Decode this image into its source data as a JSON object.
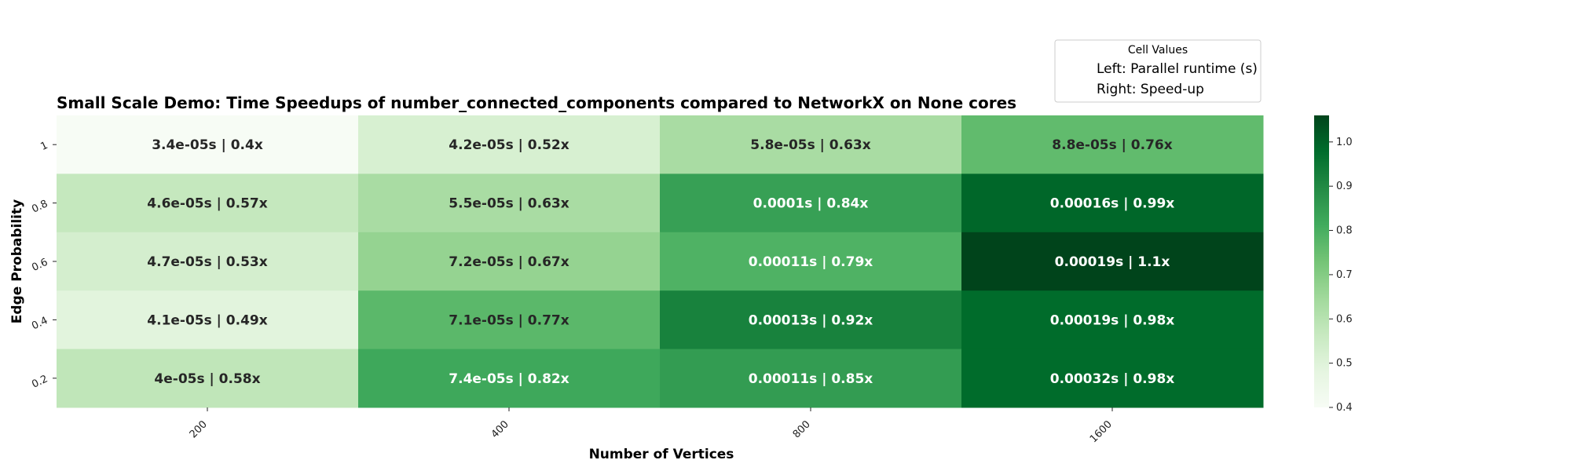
{
  "chart_data": {
    "type": "heatmap",
    "title": "Small Scale Demo: Time Speedups of number_connected_components compared to NetworkX on None cores",
    "xlabel": "Number of Vertices",
    "ylabel": "Edge Probability",
    "x_categories": [
      "200",
      "400",
      "800",
      "1600"
    ],
    "y_categories": [
      "1",
      "0.8",
      "0.6",
      "0.4",
      "0.2"
    ],
    "values": [
      [
        0.4,
        0.52,
        0.63,
        0.76
      ],
      [
        0.57,
        0.63,
        0.84,
        0.99
      ],
      [
        0.53,
        0.67,
        0.79,
        1.06
      ],
      [
        0.49,
        0.77,
        0.92,
        0.98
      ],
      [
        0.58,
        0.82,
        0.85,
        0.98
      ]
    ],
    "cell_labels": [
      [
        "3.4e-05s | 0.4x",
        "4.2e-05s | 0.52x",
        "5.8e-05s | 0.63x",
        "8.8e-05s | 0.76x"
      ],
      [
        "4.6e-05s | 0.57x",
        "5.5e-05s | 0.63x",
        "0.0001s | 0.84x",
        "0.00016s | 0.99x"
      ],
      [
        "4.7e-05s | 0.53x",
        "7.2e-05s | 0.67x",
        "0.00011s | 0.79x",
        "0.00019s | 1.1x"
      ],
      [
        "4.1e-05s | 0.49x",
        "7.1e-05s | 0.77x",
        "0.00013s | 0.92x",
        "0.00019s | 0.98x"
      ],
      [
        "4e-05s | 0.58x",
        "7.4e-05s | 0.82x",
        "0.00011s | 0.85x",
        "0.00032s | 0.98x"
      ]
    ],
    "colorbar": {
      "colormap": "Greens",
      "vmin": 0.4,
      "vmax": 1.06,
      "ticks": [
        "0.4",
        "0.5",
        "0.6",
        "0.7",
        "0.8",
        "0.9",
        "1.0"
      ]
    },
    "legend": {
      "title": "Cell Values",
      "entries": [
        "Left: Parallel runtime (s)",
        "Right: Speed-up"
      ],
      "placement": "top-right"
    }
  }
}
